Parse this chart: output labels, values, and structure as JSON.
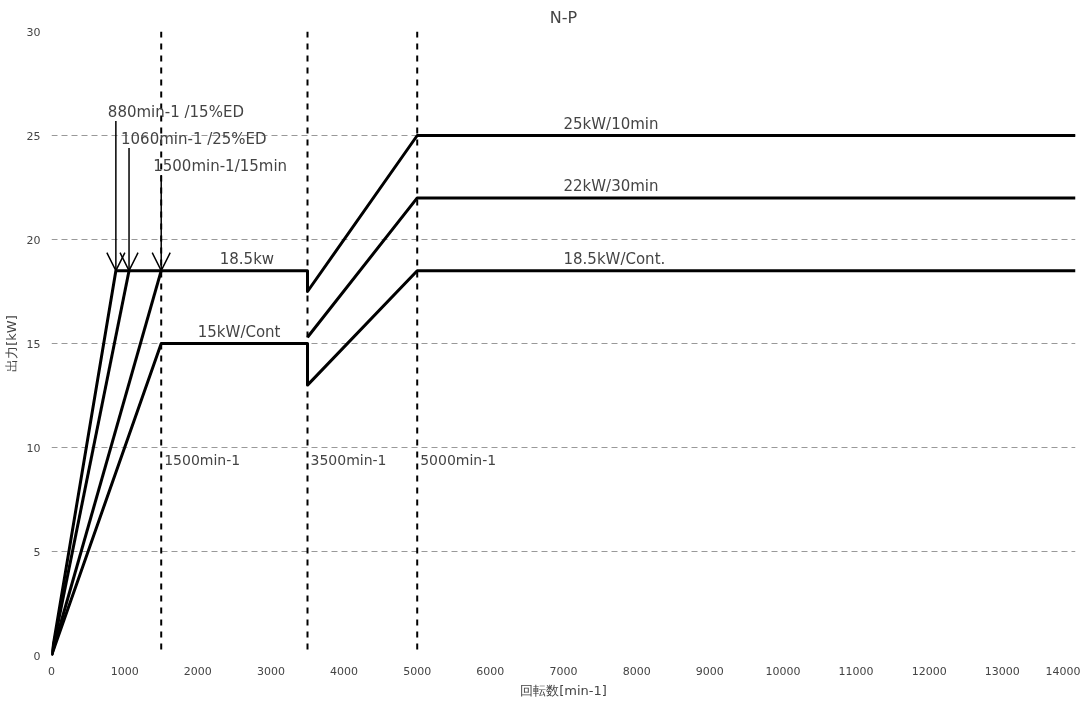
{
  "chart_data": {
    "type": "line",
    "title": "N-P",
    "xlabel": "回転数[min-1]",
    "ylabel": "出力[kW]",
    "xlim": [
      0,
      14000
    ],
    "ylim": [
      0,
      30
    ],
    "xticks": [
      0,
      1000,
      2000,
      3000,
      4000,
      5000,
      6000,
      7000,
      8000,
      9000,
      10000,
      11000,
      12000,
      13000,
      14000
    ],
    "yticks": [
      0,
      5,
      10,
      15,
      20,
      25,
      30
    ],
    "grid": "y",
    "marker": "none",
    "line_style": "solid",
    "series": [
      {
        "color": "#000000",
        "x": [
          0,
          880,
          3500,
          3500,
          5000,
          14000
        ],
        "values": [
          0,
          18.5,
          18.5,
          17.5,
          25,
          25
        ]
      },
      {
        "color": "#000000",
        "x": [
          0,
          1060
        ],
        "values": [
          0,
          18.5
        ]
      },
      {
        "color": "#000000",
        "x": [
          0,
          1500
        ],
        "values": [
          0,
          18.5
        ]
      },
      {
        "color": "#000000",
        "x": [
          0,
          1500,
          3500,
          3500,
          5000,
          14000
        ],
        "values": [
          0,
          15,
          15,
          13,
          18.5,
          18.5
        ]
      },
      {
        "color": "#000000",
        "x": [
          3500,
          5000,
          14000
        ],
        "values": [
          15.3,
          22,
          22
        ]
      }
    ],
    "ref_lines": [
      {
        "axis": "x",
        "value": 1500,
        "label": "1500min-1",
        "color": "#000000",
        "line_style": "dashed"
      },
      {
        "axis": "x",
        "value": 3500,
        "label": "3500min-1",
        "color": "#000000",
        "line_style": "dashed"
      },
      {
        "axis": "x",
        "value": 5000,
        "label": "5000min-1",
        "color": "#000000",
        "line_style": "dashed"
      }
    ],
    "annotations": [
      {
        "text": "880min-1 /15%ED",
        "x": 880,
        "y": 18.5
      },
      {
        "text": "1060min-1 /25%ED",
        "x": 1060,
        "y": 18.5
      },
      {
        "text": "1500min-1/15min",
        "x": 1500,
        "y": 18.5
      },
      {
        "text": "18.5kw",
        "x": 2300,
        "y": 18.5
      },
      {
        "text": "15kW/Cont",
        "x": 2000,
        "y": 15
      },
      {
        "text": "25kW/10min",
        "x": 7000,
        "y": 25
      },
      {
        "text": "22kW/30min",
        "x": 7000,
        "y": 22
      },
      {
        "text": "18.5kW/Cont.",
        "x": 7000,
        "y": 18.5
      }
    ]
  }
}
